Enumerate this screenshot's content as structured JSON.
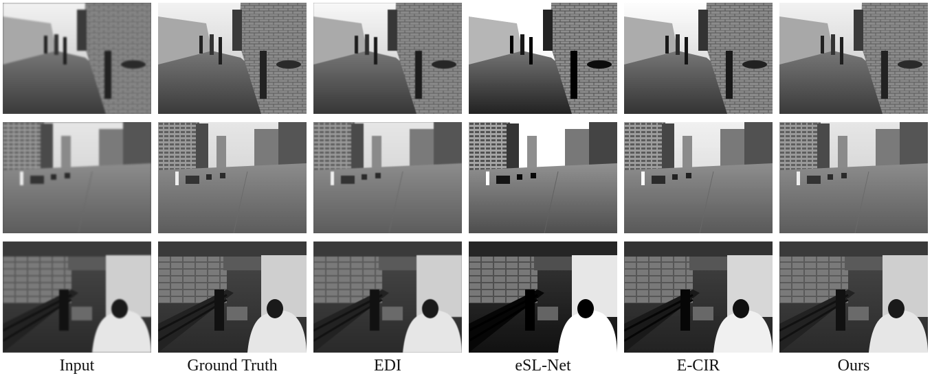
{
  "figure": {
    "columns": [
      "Input",
      "Ground Truth",
      "EDI",
      "eSL-Net",
      "E-CIR",
      "Ours"
    ],
    "rows": [
      {
        "scene": "street-alley-with-brick-wall"
      },
      {
        "scene": "city-avenue-with-tall-buildings"
      },
      {
        "scene": "walkway-with-railing-and-pedestrians"
      }
    ]
  }
}
